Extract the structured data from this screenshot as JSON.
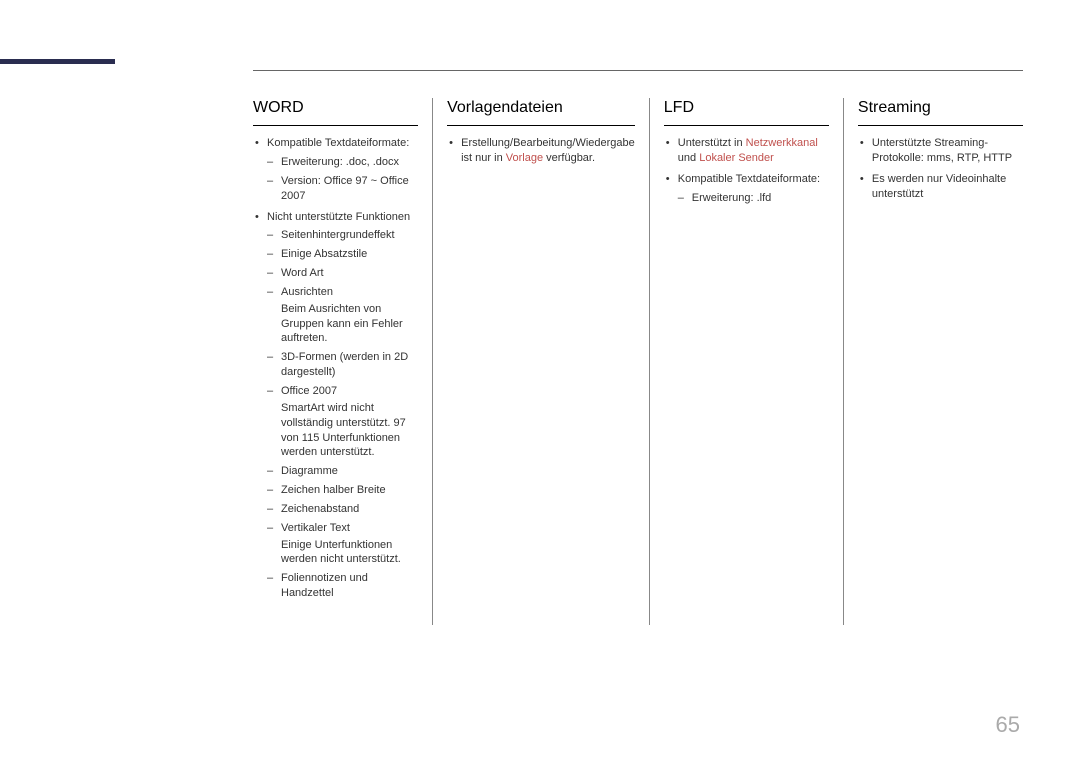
{
  "pageNumber": "65",
  "columns": [
    {
      "header": "WORD",
      "items": [
        {
          "text": "Kompatible Textdateiformate:",
          "sub": [
            {
              "text": "Erweiterung: .doc, .docx"
            },
            {
              "text": "Version: Office 97 ~ Office 2007"
            }
          ]
        },
        {
          "text": "Nicht unterstützte Funktionen",
          "sub": [
            {
              "text": "Seitenhintergrundeffekt"
            },
            {
              "text": "Einige Absatzstile"
            },
            {
              "text": "Word Art"
            },
            {
              "text": "Ausrichten",
              "note": "Beim Ausrichten von Gruppen kann ein Fehler auftreten."
            },
            {
              "text": "3D-Formen (werden in 2D dargestellt)"
            },
            {
              "text": "Office 2007",
              "note": "SmartArt wird nicht vollständig unterstützt. 97 von 115 Unterfunktionen werden unterstützt."
            },
            {
              "text": "Diagramme"
            },
            {
              "text": "Zeichen halber Breite"
            },
            {
              "text": "Zeichenabstand"
            },
            {
              "text": "Vertikaler Text",
              "note": "Einige Unterfunktionen werden nicht unterstützt."
            },
            {
              "text": "Foliennotizen und Handzettel"
            }
          ]
        }
      ]
    },
    {
      "header": "Vorlagendateien",
      "items": [
        {
          "parts": [
            {
              "t": "Erstellung/Bearbeitung/Wiedergabe ist nur in "
            },
            {
              "t": "Vorlage",
              "hl": true
            },
            {
              "t": " verfügbar."
            }
          ]
        }
      ]
    },
    {
      "header": "LFD",
      "items": [
        {
          "parts": [
            {
              "t": "Unterstützt in "
            },
            {
              "t": "Netzwerkkanal",
              "hl": true
            },
            {
              "t": " und "
            },
            {
              "t": "Lokaler Sender",
              "hl": true
            }
          ]
        },
        {
          "text": "Kompatible Textdateiformate:",
          "sub": [
            {
              "text": "Erweiterung: .lfd"
            }
          ]
        }
      ]
    },
    {
      "header": "Streaming",
      "items": [
        {
          "text": "Unterstützte Streaming-Protokolle: mms, RTP, HTTP"
        },
        {
          "text": "Es werden nur Videoinhalte unterstützt"
        }
      ]
    }
  ]
}
